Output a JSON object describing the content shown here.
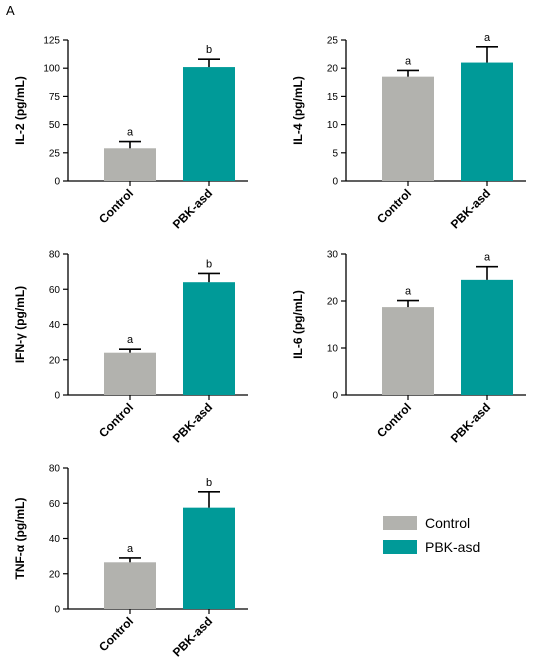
{
  "panel_label": "A",
  "colors": {
    "control": "#b2b2ae",
    "treatment": "#009a98",
    "axis": "#000000"
  },
  "legend": [
    {
      "label": "Control",
      "color": "#b2b2ae"
    },
    {
      "label": "PBK-asd",
      "color": "#009a98"
    }
  ],
  "chart_data": [
    {
      "type": "bar",
      "categories": [
        "Control",
        "PBK-asd"
      ],
      "ylabel": "IL-2  (pg/mL)",
      "ylim": [
        0,
        125
      ],
      "yticks": [
        0,
        25,
        50,
        75,
        100,
        125
      ],
      "series": [
        {
          "values": [
            29,
            101
          ],
          "errors": [
            6,
            7
          ],
          "labels": [
            "a",
            "b"
          ]
        }
      ]
    },
    {
      "type": "bar",
      "categories": [
        "Control",
        "PBK-asd"
      ],
      "ylabel": "IL-4 (pg/mL)",
      "ylim": [
        0,
        25
      ],
      "yticks": [
        0,
        5,
        10,
        15,
        20,
        25
      ],
      "series": [
        {
          "values": [
            18.5,
            21
          ],
          "errors": [
            1.1,
            2.8
          ],
          "labels": [
            "a",
            "a"
          ]
        }
      ]
    },
    {
      "type": "bar",
      "categories": [
        "Control",
        "PBK-asd"
      ],
      "ylabel": "IFN-γ (pg/mL)",
      "ylim": [
        0,
        80
      ],
      "yticks": [
        0,
        20,
        40,
        60,
        80
      ],
      "series": [
        {
          "values": [
            24,
            64
          ],
          "errors": [
            2,
            5
          ],
          "labels": [
            "a",
            "b"
          ]
        }
      ]
    },
    {
      "type": "bar",
      "categories": [
        "Control",
        "PBK-asd"
      ],
      "ylabel": "IL-6 (pg/mL)",
      "ylim": [
        0,
        30
      ],
      "yticks": [
        0,
        10,
        20,
        30
      ],
      "series": [
        {
          "values": [
            18.7,
            24.5
          ],
          "errors": [
            1.4,
            2.8
          ],
          "labels": [
            "a",
            "a"
          ]
        }
      ]
    },
    {
      "type": "bar",
      "categories": [
        "Control",
        "PBK-asd"
      ],
      "ylabel": "TNF-α (pg/mL)",
      "ylim": [
        0,
        80
      ],
      "yticks": [
        0,
        20,
        40,
        60,
        80
      ],
      "series": [
        {
          "values": [
            26.5,
            57.5
          ],
          "errors": [
            2.5,
            9
          ],
          "labels": [
            "a",
            "b"
          ]
        }
      ]
    }
  ]
}
